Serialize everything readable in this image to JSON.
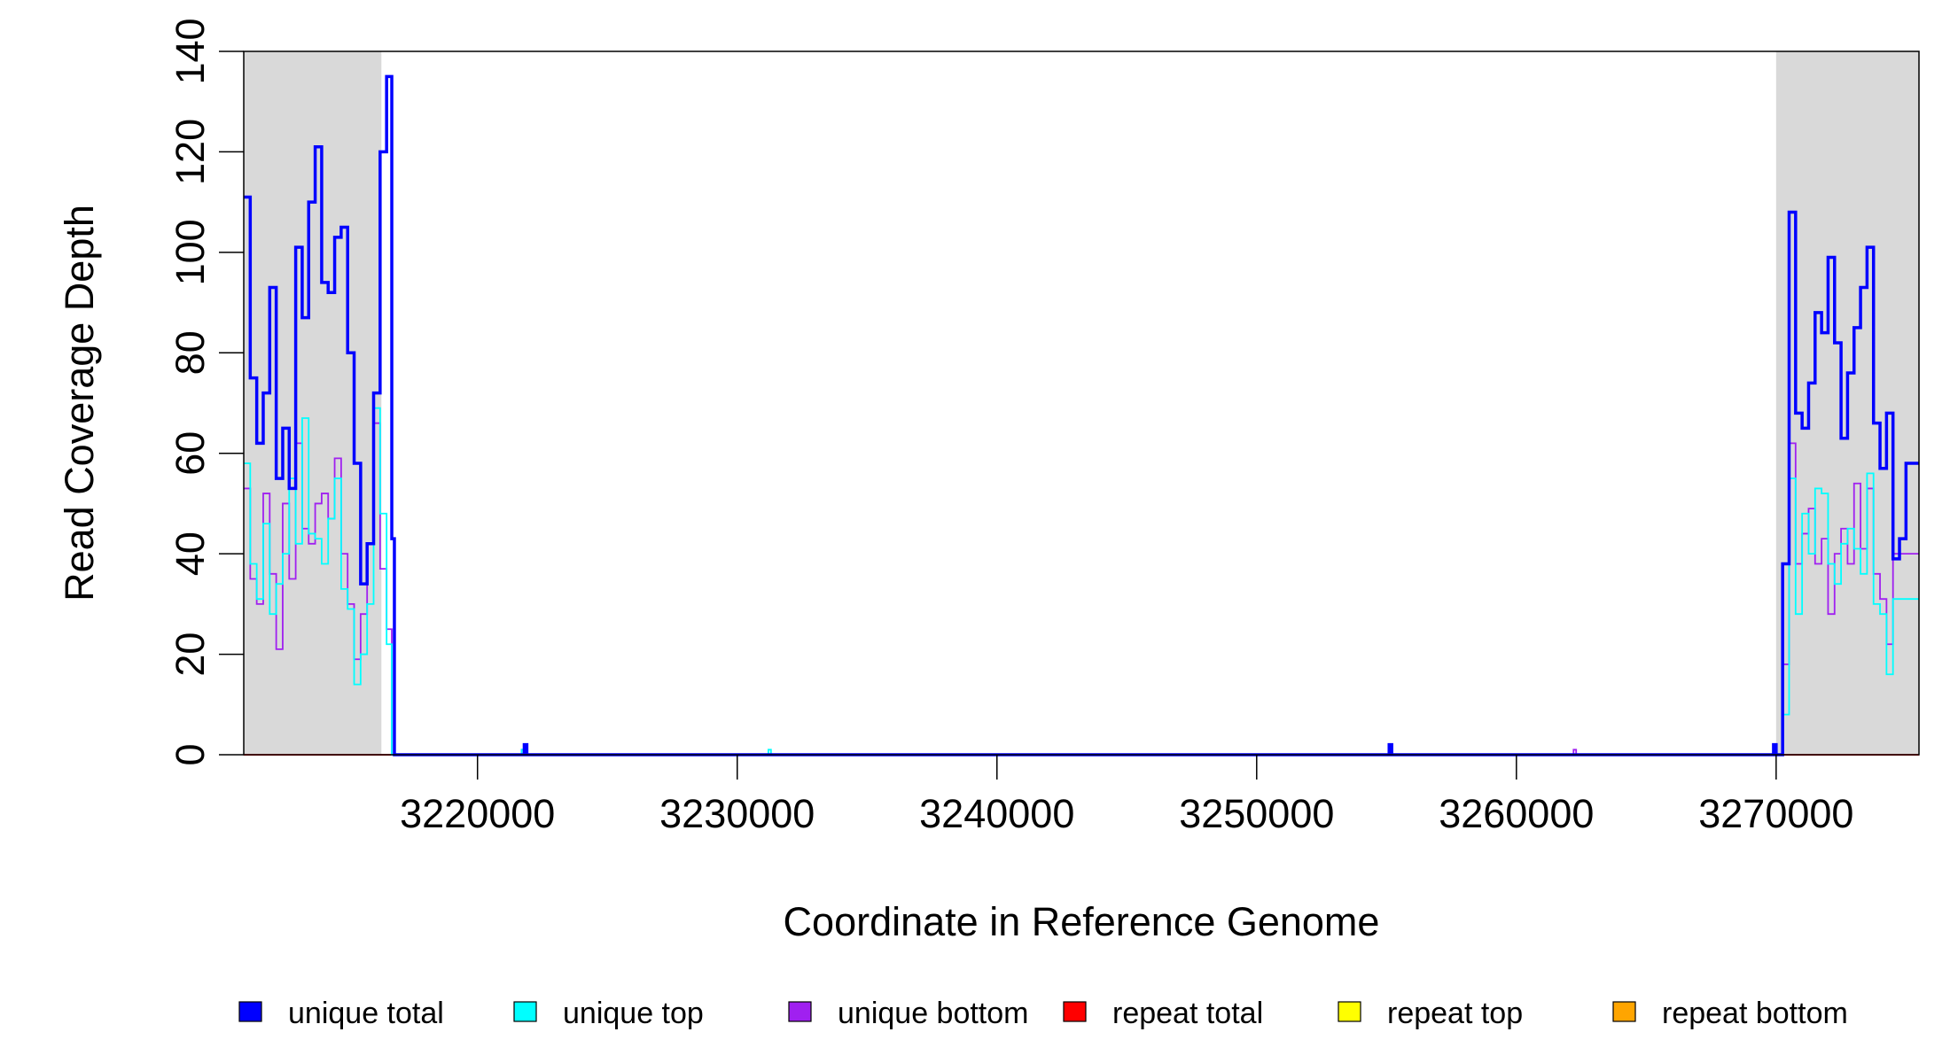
{
  "chart_data": {
    "type": "line",
    "xlabel": "Coordinate in Reference Genome",
    "ylabel": "Read Coverage Depth",
    "xlim": [
      3211000,
      3275500
    ],
    "ylim": [
      0,
      140
    ],
    "x_ticks": [
      3220000,
      3230000,
      3240000,
      3250000,
      3260000,
      3270000
    ],
    "x_tick_labels": [
      "3220000",
      "3230000",
      "3240000",
      "3250000",
      "3260000",
      "3270000"
    ],
    "y_ticks": [
      0,
      20,
      40,
      60,
      80,
      100,
      120,
      140
    ],
    "y_tick_labels": [
      "0",
      "20",
      "40",
      "60",
      "80",
      "100",
      "120",
      "140"
    ],
    "shaded_regions": [
      [
        3211000,
        3216300
      ],
      [
        3270000,
        3275500
      ]
    ],
    "shade_color": "#d9d9d9",
    "legend_position": "bottom",
    "series": [
      {
        "name": "unique total",
        "color": "#0000ff",
        "x": [
          3211000,
          3211250,
          3211500,
          3211750,
          3212000,
          3212250,
          3212500,
          3212750,
          3213000,
          3213250,
          3213500,
          3213750,
          3214000,
          3214250,
          3214500,
          3214750,
          3215000,
          3215250,
          3215500,
          3215750,
          3216000,
          3216250,
          3216500,
          3216700,
          3216800,
          3221800,
          3221900,
          3222000,
          3255100,
          3255200,
          3255300,
          3269900,
          3270000,
          3270250,
          3270500,
          3270750,
          3271000,
          3271250,
          3271500,
          3271750,
          3272000,
          3272250,
          3272500,
          3272750,
          3273000,
          3273250,
          3273500,
          3273750,
          3274000,
          3274250,
          3274500,
          3274750,
          3275000,
          3275250,
          3275500
        ],
        "y": [
          111,
          75,
          62,
          72,
          93,
          55,
          65,
          53,
          101,
          87,
          110,
          121,
          94,
          92,
          103,
          105,
          80,
          58,
          34,
          42,
          72,
          120,
          135,
          43,
          0,
          2,
          0,
          0,
          2,
          0,
          0,
          2,
          0,
          38,
          108,
          68,
          65,
          74,
          88,
          84,
          99,
          82,
          63,
          76,
          85,
          93,
          101,
          66,
          57,
          68,
          39,
          43,
          58,
          58,
          58
        ]
      },
      {
        "name": "unique top",
        "color": "#00ffff",
        "x": [
          3211000,
          3211250,
          3211500,
          3211750,
          3212000,
          3212250,
          3212500,
          3212750,
          3213000,
          3213250,
          3213500,
          3213750,
          3214000,
          3214250,
          3214500,
          3214750,
          3215000,
          3215250,
          3215500,
          3215750,
          3216000,
          3216250,
          3216500,
          3216700,
          3216800,
          3221700,
          3221800,
          3221900,
          3231200,
          3231300,
          3231400,
          3270000,
          3270250,
          3270500,
          3270750,
          3271000,
          3271250,
          3271500,
          3271750,
          3272000,
          3272250,
          3272500,
          3272750,
          3273000,
          3273250,
          3273500,
          3273750,
          3274000,
          3274250,
          3274500,
          3274750,
          3275000,
          3275250,
          3275500
        ],
        "y": [
          58,
          38,
          31,
          46,
          28,
          34,
          40,
          55,
          42,
          67,
          44,
          43,
          38,
          47,
          55,
          33,
          29,
          14,
          20,
          30,
          69,
          48,
          22,
          0,
          0,
          1,
          0,
          0,
          1,
          0,
          0,
          0,
          8,
          55,
          28,
          48,
          40,
          53,
          52,
          38,
          34,
          42,
          45,
          41,
          36,
          56,
          30,
          28,
          16,
          31,
          31,
          31,
          31,
          31
        ]
      },
      {
        "name": "unique bottom",
        "color": "#a020f0",
        "x": [
          3211000,
          3211250,
          3211500,
          3211750,
          3212000,
          3212250,
          3212500,
          3212750,
          3213000,
          3213250,
          3213500,
          3213750,
          3214000,
          3214250,
          3214500,
          3214750,
          3215000,
          3215250,
          3215500,
          3215750,
          3216000,
          3216250,
          3216500,
          3216700,
          3216800,
          3221700,
          3221800,
          3221900,
          3262200,
          3262300,
          3262400,
          3270000,
          3270250,
          3270500,
          3270750,
          3271000,
          3271250,
          3271500,
          3271750,
          3272000,
          3272250,
          3272500,
          3272750,
          3273000,
          3273250,
          3273500,
          3273750,
          3274000,
          3274250,
          3274500,
          3274750,
          3275000,
          3275250,
          3275500
        ],
        "y": [
          53,
          35,
          30,
          52,
          36,
          21,
          50,
          35,
          62,
          45,
          42,
          50,
          52,
          47,
          59,
          40,
          30,
          19,
          28,
          42,
          66,
          37,
          25,
          0,
          0,
          1,
          0,
          0,
          1,
          0,
          0,
          0,
          18,
          62,
          38,
          44,
          49,
          38,
          43,
          28,
          40,
          45,
          38,
          54,
          41,
          53,
          36,
          31,
          22,
          40,
          40,
          40,
          40,
          40
        ]
      },
      {
        "name": "repeat total",
        "color": "#ff0000",
        "x": [
          3211000,
          3275500
        ],
        "y": [
          0,
          0
        ]
      },
      {
        "name": "repeat top",
        "color": "#ffff00",
        "x": [
          3211000,
          3275500
        ],
        "y": [
          0,
          0
        ]
      },
      {
        "name": "repeat bottom",
        "color": "#ffa500",
        "x": [
          3211000,
          3275500
        ],
        "y": [
          0,
          0
        ]
      }
    ]
  }
}
